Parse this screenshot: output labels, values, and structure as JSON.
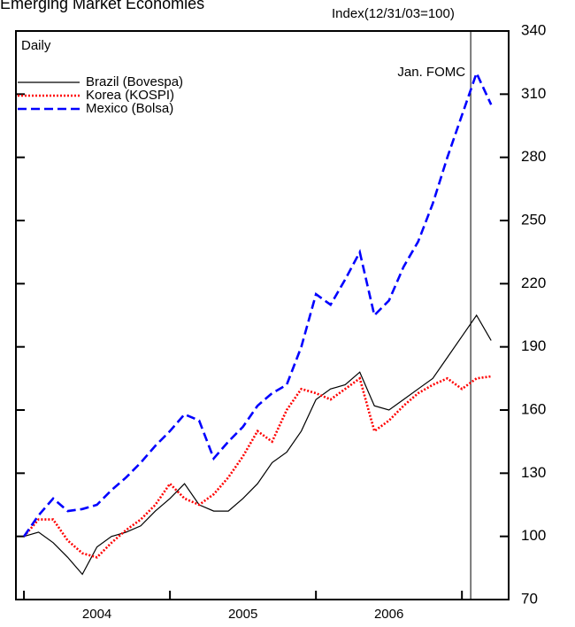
{
  "chart_data": {
    "type": "line",
    "title": "Emerging Market Economies",
    "y_axis_label": "Index(12/31/03=100)",
    "subtitle": "Daily",
    "annotation": {
      "text": "Jan. FOMC",
      "x": 2007.06
    },
    "x": [
      2004.0,
      2004.1,
      2004.2,
      2004.3,
      2004.4,
      2004.5,
      2004.6,
      2004.7,
      2004.8,
      2004.9,
      2005.0,
      2005.1,
      2005.2,
      2005.3,
      2005.4,
      2005.5,
      2005.6,
      2005.7,
      2005.8,
      2005.9,
      2006.0,
      2006.1,
      2006.2,
      2006.3,
      2006.4,
      2006.5,
      2006.6,
      2006.7,
      2006.8,
      2006.9,
      2007.0,
      2007.1,
      2007.2
    ],
    "series": [
      {
        "name": "Brazil (Bovespa)",
        "color": "#000000",
        "dash": "solid",
        "values": [
          100,
          102,
          97,
          90,
          82,
          95,
          100,
          102,
          105,
          112,
          118,
          125,
          115,
          112,
          112,
          118,
          125,
          135,
          140,
          150,
          165,
          170,
          172,
          178,
          162,
          160,
          165,
          170,
          175,
          185,
          195,
          205,
          193
        ]
      },
      {
        "name": "Korea (KOSPI)",
        "color": "#ff0000",
        "dash": "dotted",
        "values": [
          100,
          108,
          108,
          98,
          92,
          90,
          97,
          103,
          108,
          115,
          125,
          118,
          115,
          120,
          128,
          138,
          150,
          145,
          160,
          170,
          168,
          165,
          170,
          175,
          150,
          155,
          162,
          168,
          172,
          175,
          170,
          175,
          176
        ]
      },
      {
        "name": "Mexico (Bolsa)",
        "color": "#0000ff",
        "dash": "dashed",
        "values": [
          100,
          110,
          118,
          112,
          113,
          115,
          122,
          128,
          135,
          143,
          150,
          158,
          155,
          137,
          145,
          152,
          162,
          168,
          172,
          190,
          215,
          210,
          222,
          235,
          205,
          212,
          228,
          240,
          258,
          280,
          300,
          320,
          305
        ]
      }
    ],
    "xlim": [
      2003.945,
      2007.32
    ],
    "xticks": [
      2004,
      2005,
      2006,
      2007
    ],
    "xtick_labels": [
      {
        "value": 2004.5,
        "label": "2004"
      },
      {
        "value": 2005.5,
        "label": "2005"
      },
      {
        "value": 2006.5,
        "label": "2006"
      }
    ],
    "ylim": [
      70,
      340
    ],
    "yticks": [
      70,
      100,
      130,
      160,
      190,
      220,
      250,
      280,
      310,
      340
    ]
  }
}
